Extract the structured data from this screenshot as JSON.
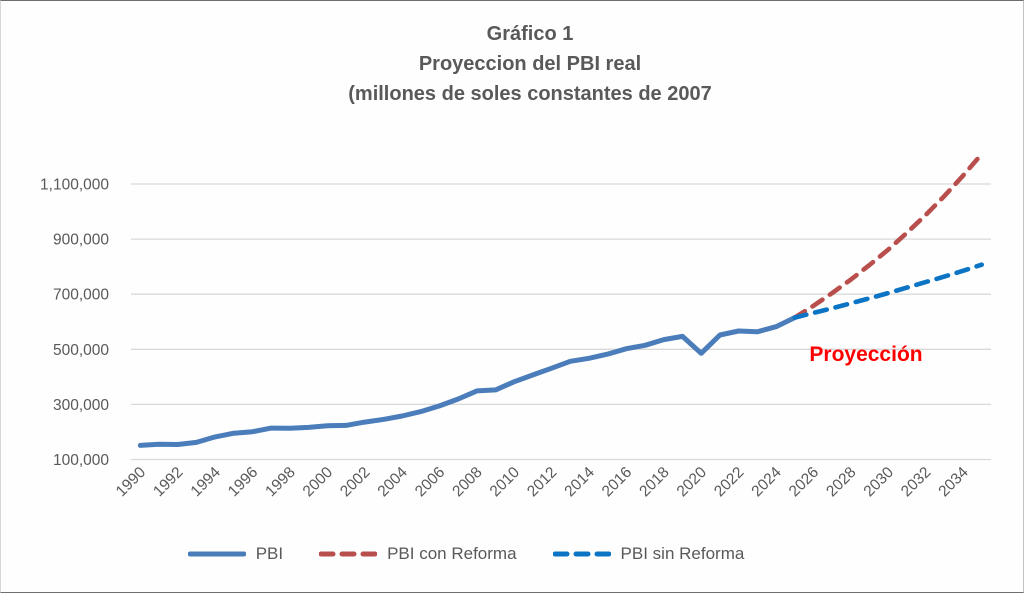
{
  "title": {
    "line1": "Gráfico 1",
    "line2": "Proyeccion del PBI real",
    "line3": "(millones de soles constantes de 2007"
  },
  "annotation": {
    "text": "Proyección",
    "color": "#fe0000"
  },
  "legend": {
    "items": [
      {
        "label": "PBI",
        "color": "#4a7dba",
        "dashed": false
      },
      {
        "label": "PBI con Reforma",
        "color": "#b84f4d",
        "dashed": true
      },
      {
        "label": "PBI sin Reforma",
        "color": "#0b74c4",
        "dashed": true
      }
    ]
  },
  "colors": {
    "text": "#595959",
    "gridline": "#d9d9d9",
    "background": "#fefefe",
    "pbi_line": "#4a7dba",
    "reforma_line": "#b84f4d",
    "sin_reforma_line": "#0b74c4",
    "annotation": "#fe0000"
  },
  "chart_data": {
    "type": "line",
    "title": "Gráfico 1 — Proyeccion del PBI real (millones de soles constantes de 2007)",
    "grid": true,
    "legend_position": "bottom",
    "x_axis": {
      "min": 1990,
      "max": 2035,
      "label_step": 2,
      "tick_labels": [
        "1990",
        "1992",
        "1994",
        "1996",
        "1998",
        "2000",
        "2002",
        "2004",
        "2006",
        "2008",
        "2010",
        "2012",
        "2014",
        "2016",
        "2018",
        "2020",
        "2022",
        "2024",
        "2026",
        "2028",
        "2030",
        "2032",
        "2034"
      ]
    },
    "y_axis": {
      "min": 100000,
      "max": 1250000,
      "tick_step": 200000,
      "tick_values": [
        100000,
        300000,
        500000,
        700000,
        900000,
        1100000
      ],
      "tick_labels": [
        "100,000",
        "300,000",
        "500,000",
        "700,000",
        "900,000",
        "1,100,000"
      ]
    },
    "series": [
      {
        "name": "PBI",
        "style": "solid",
        "color": "#4a7dba",
        "x_start": 1990,
        "values": [
          151000,
          155000,
          154400,
          162100,
          182000,
          195500,
          201000,
          214000,
          213200,
          216400,
          222200,
          223600,
          235800,
          245600,
          257800,
          274000,
          294600,
          319700,
          348900,
          352600,
          382400,
          407100,
          431300,
          456400,
          467400,
          482700,
          502200,
          514700,
          535200,
          546900,
          485500,
          551800,
          566500,
          563400,
          582000,
          615000
        ]
      },
      {
        "name": "PBI con Reforma",
        "style": "dashed",
        "color": "#b84f4d",
        "x_start": 2025,
        "values": [
          615000,
          658000,
          704000,
          753000,
          806000,
          862000,
          923000,
          987000,
          1056000,
          1130000,
          1209000
        ]
      },
      {
        "name": "PBI sin Reforma",
        "style": "dashed",
        "color": "#0b74c4",
        "x_start": 2025,
        "values": [
          615000,
          632000,
          649000,
          667000,
          685000,
          704000,
          724000,
          744000,
          764000,
          785000,
          807000
        ]
      }
    ],
    "annotation": {
      "text": "Proyección",
      "x": 865,
      "y": 360
    }
  }
}
